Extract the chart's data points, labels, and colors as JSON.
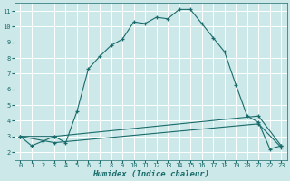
{
  "xlabel": "Humidex (Indice chaleur)",
  "ylabel": "",
  "bg_color": "#cce8e8",
  "grid_color": "#ffffff",
  "line_color": "#1a6b6b",
  "xlim": [
    -0.5,
    23.5
  ],
  "ylim": [
    1.5,
    11.5
  ],
  "xticks": [
    0,
    1,
    2,
    3,
    4,
    5,
    6,
    7,
    8,
    9,
    10,
    11,
    12,
    13,
    14,
    15,
    16,
    17,
    18,
    19,
    20,
    21,
    22,
    23
  ],
  "yticks": [
    2,
    3,
    4,
    5,
    6,
    7,
    8,
    9,
    10,
    11
  ],
  "line1_x": [
    0,
    1,
    2,
    3,
    4,
    5,
    6,
    7,
    8,
    9,
    10,
    11,
    12,
    13,
    14,
    15,
    16,
    17,
    18,
    19,
    20,
    21,
    22,
    23
  ],
  "line1_y": [
    3.0,
    2.4,
    2.7,
    3.0,
    2.6,
    4.6,
    7.3,
    8.1,
    8.8,
    9.2,
    10.3,
    10.2,
    10.6,
    10.5,
    11.1,
    11.1,
    10.2,
    9.3,
    8.4,
    6.3,
    4.3,
    3.9,
    2.2,
    2.4
  ],
  "line2_x": [
    0,
    3,
    21,
    23
  ],
  "line2_y": [
    3.0,
    3.0,
    4.3,
    2.4
  ],
  "line3_x": [
    0,
    3,
    21,
    23
  ],
  "line3_y": [
    3.0,
    2.6,
    3.8,
    2.3
  ],
  "xlabel_fontsize": 6.5,
  "tick_fontsize": 5.0,
  "figwidth": 3.2,
  "figheight": 2.0,
  "dpi": 100
}
